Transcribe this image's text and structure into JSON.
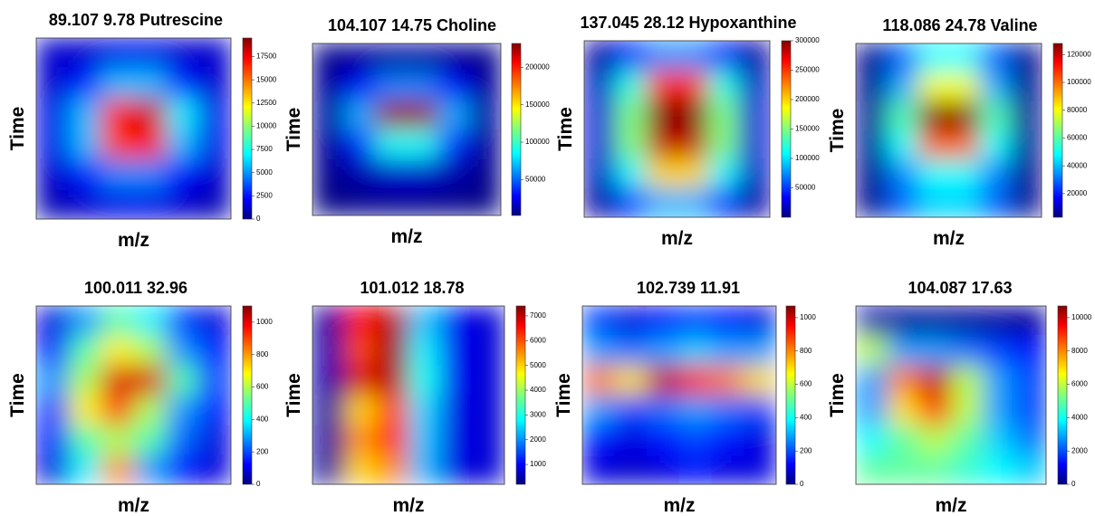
{
  "chart_data": [
    {
      "type": "heatmap",
      "title": "89.107   9.78  Putrescine",
      "xlabel": "m/z",
      "ylabel": "Time",
      "zlim": [
        0,
        19500
      ],
      "zticks": [
        0,
        2500,
        5000,
        7500,
        10000,
        12500,
        15000,
        17500
      ],
      "values": [
        [
          1500,
          1500,
          2000,
          2000,
          1500,
          1500
        ],
        [
          1500,
          3000,
          6000,
          6000,
          3000,
          1500
        ],
        [
          2000,
          6000,
          17000,
          18000,
          7000,
          2000
        ],
        [
          2000,
          6000,
          16000,
          17000,
          6000,
          2000
        ],
        [
          1500,
          3000,
          5000,
          5000,
          2500,
          1500
        ],
        [
          1000,
          1500,
          2000,
          2000,
          1500,
          1000
        ]
      ]
    },
    {
      "type": "heatmap",
      "title": "104.107   14.75  Choline",
      "xlabel": "m/z",
      "ylabel": "Time",
      "zlim": [
        2000,
        232000
      ],
      "zticks": [
        50000,
        100000,
        150000,
        200000
      ],
      "values": [
        [
          5000,
          8000,
          10000,
          10000,
          8000,
          5000
        ],
        [
          8000,
          30000,
          60000,
          60000,
          30000,
          8000
        ],
        [
          10000,
          70000,
          225000,
          225000,
          70000,
          10000
        ],
        [
          8000,
          40000,
          90000,
          90000,
          40000,
          8000
        ],
        [
          5000,
          12000,
          20000,
          20000,
          12000,
          5000
        ],
        [
          3000,
          5000,
          6000,
          6000,
          5000,
          3000
        ]
      ]
    },
    {
      "type": "heatmap",
      "title": "137.045  28.12 Hypoxanthine",
      "xlabel": "m/z",
      "ylabel": "Time",
      "zlim": [
        0,
        300000
      ],
      "zticks": [
        50000,
        100000,
        150000,
        200000,
        250000,
        300000
      ],
      "values": [
        [
          10000,
          40000,
          80000,
          80000,
          40000,
          10000
        ],
        [
          20000,
          120000,
          250000,
          250000,
          120000,
          20000
        ],
        [
          25000,
          150000,
          300000,
          300000,
          150000,
          25000
        ],
        [
          25000,
          150000,
          280000,
          280000,
          150000,
          25000
        ],
        [
          20000,
          110000,
          200000,
          200000,
          110000,
          20000
        ],
        [
          10000,
          50000,
          90000,
          90000,
          50000,
          10000
        ]
      ]
    },
    {
      "type": "heatmap",
      "title": "118.086  24.78 Valine",
      "xlabel": "m/z",
      "ylabel": "Time",
      "zlim": [
        3000,
        128000
      ],
      "zticks": [
        20000,
        40000,
        60000,
        80000,
        100000,
        120000
      ],
      "values": [
        [
          5000,
          30000,
          50000,
          50000,
          30000,
          5000
        ],
        [
          5000,
          40000,
          80000,
          80000,
          40000,
          5000
        ],
        [
          6000,
          60000,
          128000,
          128000,
          60000,
          6000
        ],
        [
          6000,
          50000,
          100000,
          100000,
          50000,
          6000
        ],
        [
          5000,
          35000,
          50000,
          50000,
          35000,
          5000
        ],
        [
          5000,
          30000,
          45000,
          45000,
          30000,
          5000
        ]
      ]
    },
    {
      "type": "heatmap",
      "title": "100.011  32.96",
      "xlabel": "m/z",
      "ylabel": "Time",
      "zlim": [
        0,
        1100
      ],
      "zticks": [
        0,
        200,
        400,
        600,
        800,
        1000
      ],
      "values": [
        [
          100,
          300,
          500,
          400,
          200,
          100
        ],
        [
          150,
          500,
          700,
          600,
          300,
          150
        ],
        [
          300,
          600,
          1000,
          1000,
          500,
          200
        ],
        [
          200,
          700,
          900,
          600,
          300,
          150
        ],
        [
          150,
          500,
          600,
          500,
          250,
          100
        ],
        [
          100,
          400,
          800,
          300,
          150,
          100
        ]
      ]
    },
    {
      "type": "heatmap",
      "title": "101.012  18.78",
      "xlabel": "m/z",
      "ylabel": "Time",
      "zlim": [
        200,
        7400
      ],
      "zticks": [
        1000,
        2000,
        3000,
        4000,
        5000,
        6000,
        7000
      ],
      "values": [
        [
          400,
          6500,
          7000,
          2500,
          1000,
          800
        ],
        [
          500,
          6000,
          7200,
          2800,
          1000,
          800
        ],
        [
          500,
          6800,
          7000,
          3000,
          1000,
          800
        ],
        [
          400,
          5000,
          6000,
          2600,
          900,
          800
        ],
        [
          400,
          5500,
          6500,
          2500,
          900,
          800
        ],
        [
          400,
          5000,
          5500,
          2400,
          900,
          800
        ]
      ]
    },
    {
      "type": "heatmap",
      "title": "102.739  11.91",
      "xlabel": "m/z",
      "ylabel": "Time",
      "zlim": [
        0,
        1070
      ],
      "zticks": [
        0,
        200,
        400,
        600,
        800,
        1000
      ],
      "values": [
        [
          200,
          100,
          150,
          200,
          150,
          100
        ],
        [
          300,
          250,
          300,
          350,
          300,
          300
        ],
        [
          800,
          700,
          1000,
          900,
          800,
          700
        ],
        [
          300,
          200,
          250,
          300,
          250,
          200
        ],
        [
          150,
          100,
          150,
          200,
          150,
          100
        ],
        [
          100,
          80,
          100,
          150,
          100,
          100
        ]
      ]
    },
    {
      "type": "heatmap",
      "title": "104.087  17.63",
      "xlabel": "m/z",
      "ylabel": "Time",
      "zlim": [
        0,
        10700
      ],
      "zticks": [
        0,
        2000,
        4000,
        6000,
        8000,
        10000
      ],
      "values": [
        [
          500,
          300,
          300,
          300,
          300,
          300
        ],
        [
          6000,
          3000,
          3000,
          2500,
          2000,
          1500
        ],
        [
          3000,
          8000,
          10000,
          6000,
          3000,
          2000
        ],
        [
          3000,
          7000,
          9000,
          6000,
          3000,
          2000
        ],
        [
          4000,
          5000,
          6000,
          5000,
          3500,
          2500
        ],
        [
          5000,
          5000,
          5000,
          4500,
          4000,
          3500
        ]
      ]
    }
  ]
}
